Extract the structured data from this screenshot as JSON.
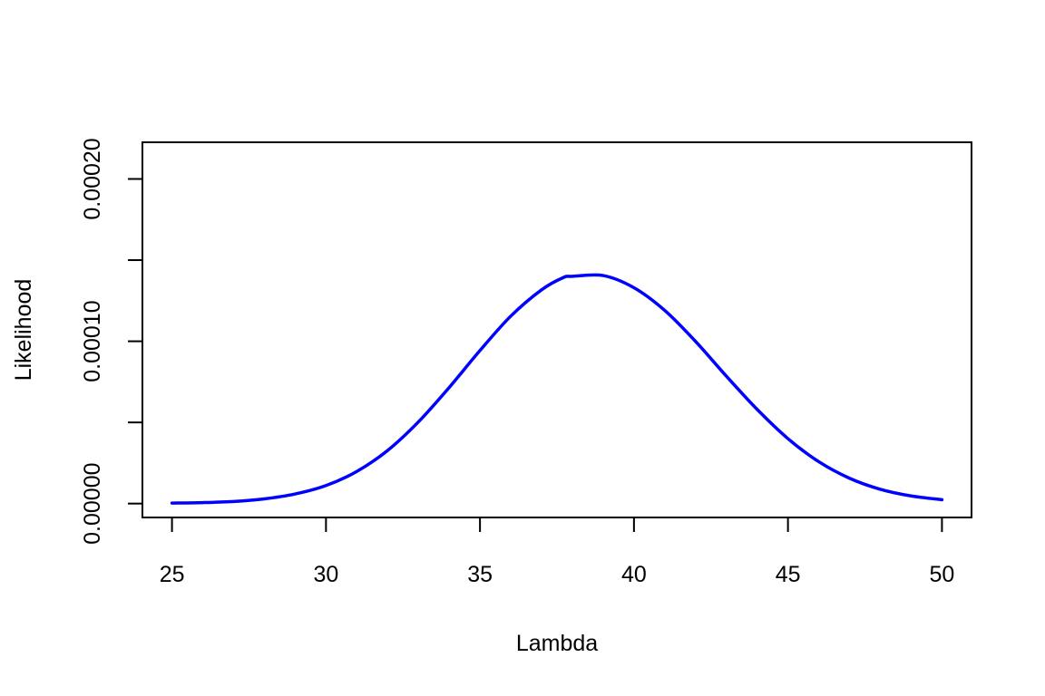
{
  "chart_data": {
    "type": "line",
    "title": "",
    "xlabel": "Lambda",
    "ylabel": "Likelihood",
    "xlim": [
      24.04,
      50.96
    ],
    "ylim": [
      -8.56e-06,
      0.0002226
    ],
    "x_ticks": [
      25,
      30,
      35,
      40,
      45,
      50
    ],
    "x_tick_labels": [
      "25",
      "30",
      "35",
      "40",
      "45",
      "50"
    ],
    "y_ticks": [
      0,
      5e-05,
      0.0001,
      0.00015,
      0.0002
    ],
    "y_tick_labels": [
      "0.00000",
      "",
      "0.00010",
      "",
      "0.00020"
    ],
    "grid": false,
    "series": [
      {
        "color": "#0000ff",
        "x": [
          25,
          26,
          27,
          28,
          29,
          30,
          31,
          32,
          33,
          34,
          35,
          36,
          37,
          37.7,
          38,
          39,
          40,
          41,
          42,
          43,
          44,
          45,
          46,
          47,
          48,
          49,
          50
        ],
        "y": [
          3e-07,
          6e-07,
          1.3e-06,
          2.9e-06,
          5.9e-06,
          1.11e-05,
          1.98e-05,
          3.27e-05,
          5.03e-05,
          7.15e-05,
          9.43e-05,
          0.0001155,
          0.0001317,
          0.0001392,
          0.00014,
          0.0001405,
          0.000133,
          0.000119,
          9.99e-05,
          7.85e-05,
          5.8e-05,
          4e-05,
          2.58e-05,
          1.56e-05,
          8.8e-06,
          4.7e-06,
          2.4e-06
        ]
      }
    ]
  }
}
